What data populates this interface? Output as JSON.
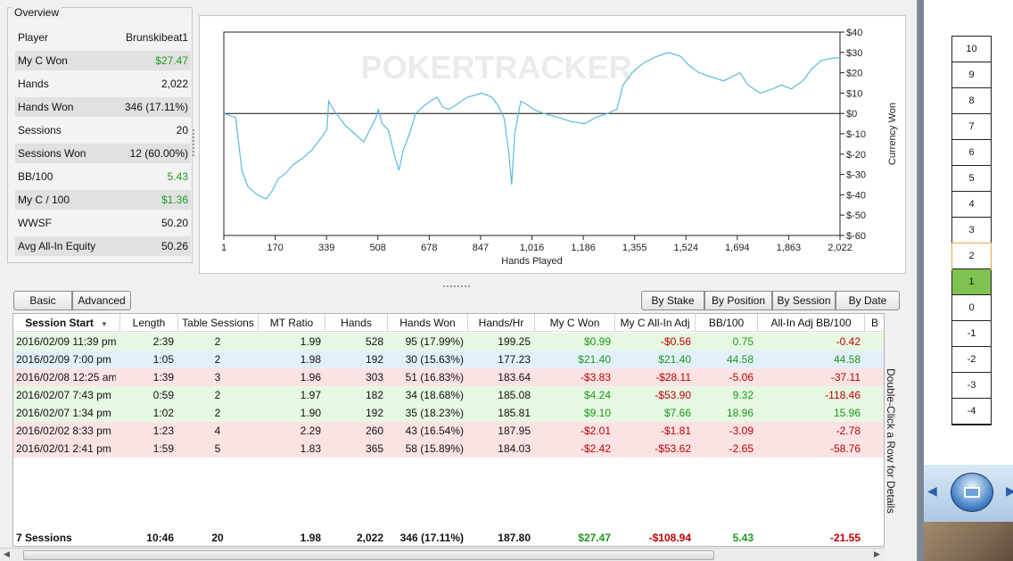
{
  "overview": {
    "title": "Overview",
    "rows": [
      {
        "label": "Player",
        "value": "Brunskibeat1",
        "tone": ""
      },
      {
        "label": "My C Won",
        "value": "$27.47",
        "tone": "green"
      },
      {
        "label": "Hands",
        "value": "2,022",
        "tone": ""
      },
      {
        "label": "Hands Won",
        "value": "346 (17.11%)",
        "tone": ""
      },
      {
        "label": "Sessions",
        "value": "20",
        "tone": ""
      },
      {
        "label": "Sessions Won",
        "value": "12 (60.00%)",
        "tone": ""
      },
      {
        "label": "BB/100",
        "value": "5.43",
        "tone": "green"
      },
      {
        "label": "My C / 100",
        "value": "$1.36",
        "tone": "green"
      },
      {
        "label": "WWSF",
        "value": "50.20",
        "tone": ""
      },
      {
        "label": "Avg All-In Equity",
        "value": "50.26",
        "tone": ""
      }
    ]
  },
  "chart_data": {
    "type": "line",
    "watermark": "POKERTRACKER",
    "xlabel": "Hands Played",
    "ylabel": "Currency Won",
    "x_ticks": [
      "1",
      "170",
      "339",
      "508",
      "678",
      "847",
      "1,016",
      "1,186",
      "1,355",
      "1,524",
      "1,694",
      "1,863",
      "2,022"
    ],
    "y_ticks": [
      "$40",
      "$30",
      "$20",
      "$10",
      "$0",
      "$-10",
      "$-20",
      "$-30",
      "$-40",
      "$-50",
      "$-60"
    ],
    "xlim": [
      1,
      2022
    ],
    "ylim": [
      -60,
      40
    ],
    "series": [
      {
        "color": "#5bb8e0",
        "points": [
          [
            1,
            0
          ],
          [
            40,
            -2
          ],
          [
            60,
            -28
          ],
          [
            80,
            -36
          ],
          [
            110,
            -40
          ],
          [
            140,
            -42
          ],
          [
            160,
            -38
          ],
          [
            180,
            -32
          ],
          [
            200,
            -30
          ],
          [
            230,
            -25
          ],
          [
            260,
            -22
          ],
          [
            290,
            -18
          ],
          [
            320,
            -12
          ],
          [
            339,
            -8
          ],
          [
            345,
            6
          ],
          [
            360,
            2
          ],
          [
            380,
            -2
          ],
          [
            400,
            -6
          ],
          [
            430,
            -10
          ],
          [
            460,
            -14
          ],
          [
            480,
            -8
          ],
          [
            500,
            -2
          ],
          [
            508,
            2
          ],
          [
            520,
            -5
          ],
          [
            540,
            -8
          ],
          [
            560,
            -20
          ],
          [
            575,
            -28
          ],
          [
            590,
            -18
          ],
          [
            610,
            -10
          ],
          [
            630,
            0
          ],
          [
            660,
            4
          ],
          [
            678,
            6
          ],
          [
            700,
            8
          ],
          [
            720,
            3
          ],
          [
            740,
            2
          ],
          [
            760,
            4
          ],
          [
            780,
            6
          ],
          [
            800,
            8
          ],
          [
            847,
            10
          ],
          [
            880,
            8
          ],
          [
            900,
            4
          ],
          [
            920,
            -2
          ],
          [
            935,
            -18
          ],
          [
            945,
            -35
          ],
          [
            955,
            -10
          ],
          [
            975,
            6
          ],
          [
            1000,
            4
          ],
          [
            1016,
            2
          ],
          [
            1050,
            0
          ],
          [
            1100,
            -2
          ],
          [
            1140,
            -4
          ],
          [
            1186,
            -5
          ],
          [
            1220,
            -2
          ],
          [
            1260,
            0
          ],
          [
            1290,
            2
          ],
          [
            1310,
            14
          ],
          [
            1340,
            20
          ],
          [
            1355,
            22
          ],
          [
            1380,
            25
          ],
          [
            1420,
            28
          ],
          [
            1460,
            30
          ],
          [
            1500,
            28
          ],
          [
            1524,
            24
          ],
          [
            1560,
            20
          ],
          [
            1600,
            18
          ],
          [
            1640,
            16
          ],
          [
            1694,
            20
          ],
          [
            1720,
            14
          ],
          [
            1760,
            10
          ],
          [
            1800,
            12
          ],
          [
            1830,
            14
          ],
          [
            1863,
            12
          ],
          [
            1880,
            14
          ],
          [
            1900,
            16
          ],
          [
            1930,
            22
          ],
          [
            1960,
            26
          ],
          [
            1990,
            27
          ],
          [
            2022,
            27.47
          ]
        ]
      }
    ]
  },
  "toggles_left": [
    {
      "label": "Basic"
    },
    {
      "label": "Advanced"
    }
  ],
  "toggles_right": [
    {
      "label": "By Stake"
    },
    {
      "label": "By Position"
    },
    {
      "label": "By Session"
    },
    {
      "label": "By Date"
    }
  ],
  "table": {
    "headers": [
      "Session Start",
      "Length",
      "Table Sessions",
      "MT Ratio",
      "Hands",
      "Hands Won",
      "Hands/Hr",
      "My C Won",
      "My C All-In Adj",
      "BB/100",
      "All-In Adj BB/100",
      "B"
    ],
    "sort_indicator": "▼",
    "rows": [
      {
        "tint": "green",
        "cells": [
          "2016/02/09 11:39 pm",
          "2:39",
          "2",
          "1.99",
          "528",
          "95 (17.99%)",
          "199.25",
          "$0.99",
          "-$0.56",
          "0.75",
          "-0.42"
        ],
        "tones": [
          "",
          "",
          "",
          "",
          "",
          "",
          "",
          "green",
          "red",
          "green",
          "red"
        ]
      },
      {
        "tint": "blue",
        "cells": [
          "2016/02/09  7:00 pm",
          "1:05",
          "2",
          "1.98",
          "192",
          "30 (15.63%)",
          "177.23",
          "$21.40",
          "$21.40",
          "44.58",
          "44.58"
        ],
        "tones": [
          "",
          "",
          "",
          "",
          "",
          "",
          "",
          "green",
          "green",
          "green",
          "green"
        ]
      },
      {
        "tint": "red",
        "cells": [
          "2016/02/08 12:25 am",
          "1:39",
          "3",
          "1.96",
          "303",
          "51 (16.83%)",
          "183.64",
          "-$3.83",
          "-$28.11",
          "-5.06",
          "-37.11"
        ],
        "tones": [
          "",
          "",
          "",
          "",
          "",
          "",
          "",
          "red",
          "red",
          "red",
          "red"
        ]
      },
      {
        "tint": "green",
        "cells": [
          "2016/02/07  7:43 pm",
          "0:59",
          "2",
          "1.97",
          "182",
          "34 (18.68%)",
          "185.08",
          "$4.24",
          "-$53.90",
          "9.32",
          "-118.46"
        ],
        "tones": [
          "",
          "",
          "",
          "",
          "",
          "",
          "",
          "green",
          "red",
          "green",
          "red"
        ]
      },
      {
        "tint": "green",
        "cells": [
          "2016/02/07  1:34 pm",
          "1:02",
          "2",
          "1.90",
          "192",
          "35 (18.23%)",
          "185.81",
          "$9.10",
          "$7.66",
          "18.96",
          "15.96"
        ],
        "tones": [
          "",
          "",
          "",
          "",
          "",
          "",
          "",
          "green",
          "green",
          "green",
          "green"
        ]
      },
      {
        "tint": "red",
        "cells": [
          "2016/02/02  8:33 pm",
          "1:23",
          "4",
          "2.29",
          "260",
          "43 (16.54%)",
          "187.95",
          "-$2.01",
          "-$1.81",
          "-3.09",
          "-2.78"
        ],
        "tones": [
          "",
          "",
          "",
          "",
          "",
          "",
          "",
          "red",
          "red",
          "red",
          "red"
        ]
      },
      {
        "tint": "red",
        "cells": [
          "2016/02/01  2:41 pm",
          "1:59",
          "5",
          "1.83",
          "365",
          "58 (15.89%)",
          "184.03",
          "-$2.42",
          "-$53.62",
          "-2.65",
          "-58.76"
        ],
        "tones": [
          "",
          "",
          "",
          "",
          "",
          "",
          "",
          "red",
          "red",
          "red",
          "red"
        ]
      }
    ],
    "totals": {
      "cells": [
        "7 Sessions",
        "10:46",
        "20",
        "1.98",
        "2,022",
        "346 (17.11%)",
        "187.80",
        "$27.47",
        "-$108.94",
        "5.43",
        "-21.55"
      ],
      "tones": [
        "",
        "",
        "",
        "",
        "",
        "",
        "",
        "green",
        "red",
        "green",
        "red"
      ]
    },
    "side_hint": "Double-Click a Row for Details"
  },
  "scale": [
    "10",
    "9",
    "8",
    "7",
    "6",
    "5",
    "4",
    "3",
    "2",
    "1",
    "0",
    "-1",
    "-2",
    "-3",
    "-4"
  ],
  "scale_selected": "2",
  "scale_active": "1"
}
